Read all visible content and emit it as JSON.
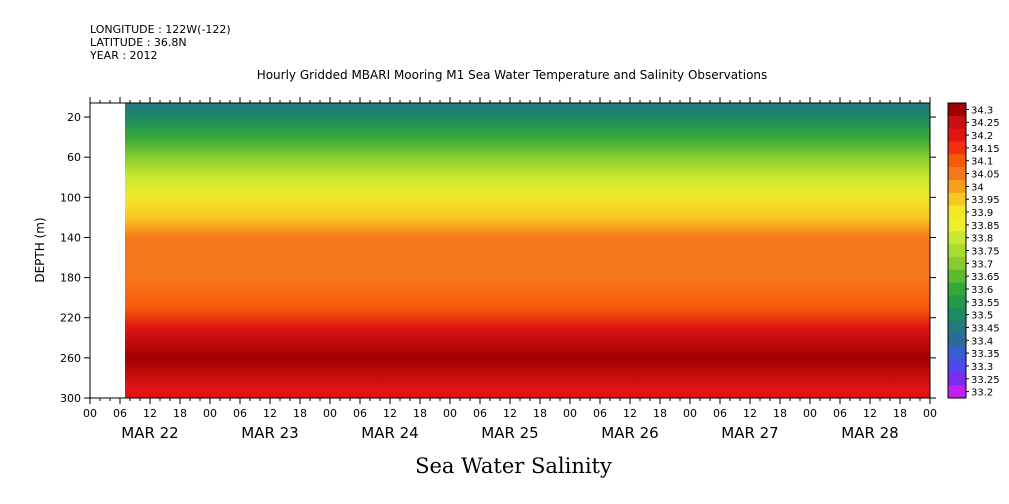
{
  "header": {
    "longitude": "LONGITUDE : 122W(-122)",
    "latitude": "LATITUDE : 36.8N",
    "year": "YEAR : 2012"
  },
  "chart_data": {
    "type": "heatmap",
    "title": "Hourly Gridded MBARI Mooring M1 Sea Water Temperature and Salinity Observations",
    "xlabel": "Sea Water Salinity",
    "ylabel": "DEPTH (m)",
    "x_hour_ticks": [
      "00",
      "06",
      "12",
      "18",
      "00",
      "06",
      "12",
      "18",
      "00",
      "06",
      "12",
      "18",
      "00",
      "06",
      "12",
      "18",
      "00",
      "06",
      "12",
      "18",
      "00",
      "06",
      "12",
      "18",
      "00",
      "06",
      "12",
      "18",
      "00"
    ],
    "x_day_labels": [
      "MAR 22",
      "MAR 23",
      "MAR 24",
      "MAR 25",
      "MAR 26",
      "MAR 27",
      "MAR 28"
    ],
    "y_ticks": [
      20,
      60,
      100,
      140,
      180,
      220,
      260,
      300
    ],
    "y_range": [
      6,
      300
    ],
    "y_inverted": true,
    "x_range_hours": [
      0,
      168
    ],
    "data_start_hour": 7,
    "colorbar": {
      "levels": [
        "34.3",
        "34.25",
        "34.2",
        "34.15",
        "34.1",
        "34.05",
        "34",
        "33.95",
        "33.9",
        "33.85",
        "33.8",
        "33.75",
        "33.7",
        "33.65",
        "33.6",
        "33.55",
        "33.5",
        "33.45",
        "33.4",
        "33.35",
        "33.3",
        "33.25",
        "33.2"
      ],
      "colors": [
        "#a00000",
        "#c81010",
        "#e01414",
        "#f03010",
        "#f55a0a",
        "#f7781a",
        "#f7a01e",
        "#f7c822",
        "#f2e828",
        "#e8f030",
        "#c8e832",
        "#a8dc32",
        "#88cc30",
        "#5cba30",
        "#34a838",
        "#1f9a48",
        "#1c8a62",
        "#24787e",
        "#2d6a9a",
        "#3a5ed2",
        "#5048ea",
        "#7a2cee",
        "#c020f0"
      ]
    },
    "salinity_profile": [
      {
        "depth": 10,
        "value": 33.45
      },
      {
        "depth": 20,
        "value": 33.5
      },
      {
        "depth": 40,
        "value": 33.6
      },
      {
        "depth": 60,
        "value": 33.7
      },
      {
        "depth": 80,
        "value": 33.8
      },
      {
        "depth": 100,
        "value": 33.9
      },
      {
        "depth": 120,
        "value": 33.97
      },
      {
        "depth": 140,
        "value": 34.07
      },
      {
        "depth": 180,
        "value": 34.07
      },
      {
        "depth": 210,
        "value": 34.12
      },
      {
        "depth": 230,
        "value": 34.18
      },
      {
        "depth": 260,
        "value": 34.28
      },
      {
        "depth": 290,
        "value": 34.2
      }
    ]
  }
}
